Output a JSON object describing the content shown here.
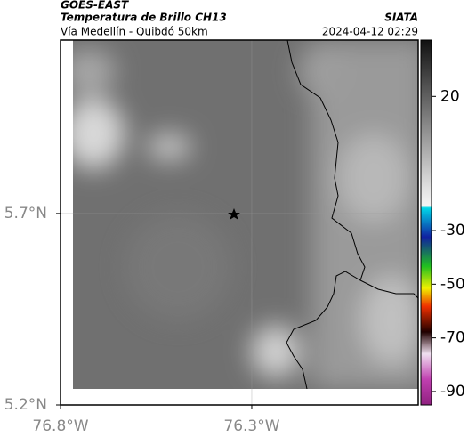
{
  "header": {
    "title": "GOES-EAST",
    "subtitle": "Temperatura de Brillo CH13",
    "region": "Vía Medellín - Quibdó 50km",
    "source": "SIATA",
    "datetime": "2024-04-12 02:29"
  },
  "map": {
    "xlim": [
      -76.8,
      -75.865
    ],
    "ylim": [
      5.2,
      6.153
    ],
    "xticks": [
      {
        "value": -76.8,
        "label": "76.8°W"
      },
      {
        "value": -76.3,
        "label": "76.3°W"
      }
    ],
    "yticks": [
      {
        "value": 5.7,
        "label": "5.7°N"
      },
      {
        "value": 5.2,
        "label": "5.2°N"
      }
    ],
    "grid": true
  },
  "colorbar": {
    "clim": [
      41,
      -95
    ],
    "ticks": [
      20,
      -30,
      -50,
      -70,
      -90
    ]
  }
}
